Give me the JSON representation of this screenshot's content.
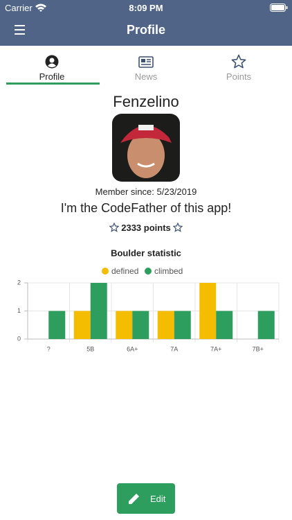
{
  "status_bar": {
    "carrier": "Carrier",
    "time": "8:09 PM"
  },
  "header": {
    "title": "Profile"
  },
  "tabs": [
    {
      "label": "Profile",
      "active": true
    },
    {
      "label": "News",
      "active": false
    },
    {
      "label": "Points",
      "active": false
    }
  ],
  "profile": {
    "name": "Fenzelino",
    "member_since": "Member since: 5/23/2019",
    "bio": "I'm the CodeFather of this app!",
    "points": "2333 points"
  },
  "chart_data": {
    "type": "bar",
    "title": "Boulder statistic",
    "categories": [
      "?",
      "5B",
      "6A+",
      "7A",
      "7A+",
      "7B+"
    ],
    "series": [
      {
        "name": "defined",
        "color": "#f5bd02",
        "values": [
          0,
          1,
          1,
          1,
          2,
          0
        ]
      },
      {
        "name": "climbed",
        "color": "#2e9e5e",
        "values": [
          1,
          2,
          1,
          1,
          1,
          1
        ]
      }
    ],
    "ylim": [
      0,
      2
    ],
    "yticks": [
      0,
      1,
      2
    ],
    "grid": true
  },
  "edit_button": {
    "label": "Edit"
  }
}
